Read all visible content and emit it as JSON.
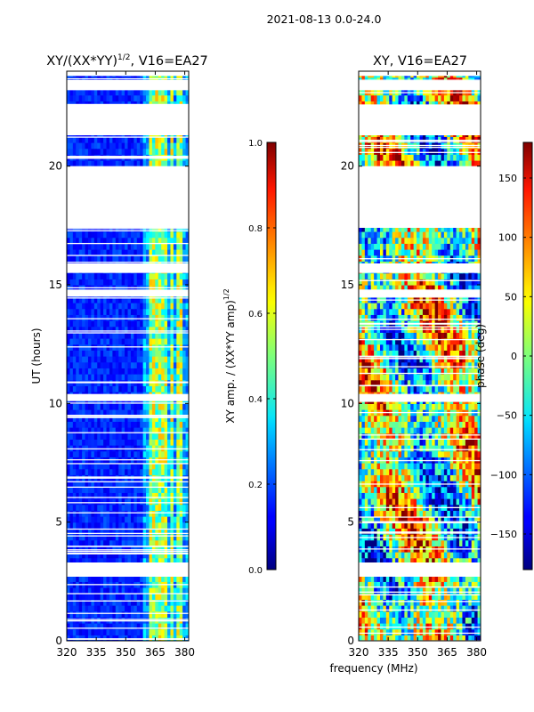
{
  "figure": {
    "suptitle": "2021-08-13 0.0-24.0",
    "xlabel": "frequency (MHz)"
  },
  "chart_data": [
    {
      "type": "heatmap",
      "title_main": "XY/(XX*YY)",
      "title_sup": "1/2",
      "title_tail": ", V16=EA27",
      "ylabel": "UT (hours)",
      "xlim": [
        320,
        382
      ],
      "ylim": [
        0,
        24
      ],
      "xticks": [
        320,
        335,
        350,
        365,
        380
      ],
      "yticks": [
        0,
        5,
        10,
        15,
        20
      ],
      "colorbar": {
        "label_main": "XY amp. / (XX*YY amp)",
        "label_sup": "1/2",
        "range": [
          0.0,
          1.0
        ],
        "ticks": [
          "0.0",
          "0.2",
          "0.4",
          "0.6",
          "0.8",
          "1.0"
        ],
        "colormap": "jet"
      },
      "flagged_ut_ranges": [
        [
          2.7,
          3.3
        ],
        [
          10.1,
          10.4
        ],
        [
          14.5,
          14.8
        ],
        [
          15.5,
          15.9
        ],
        [
          17.4,
          20.0
        ],
        [
          21.3,
          22.6
        ],
        [
          23.2,
          23.6
        ],
        [
          23.8,
          24.0
        ]
      ],
      "strong_bands_mhz": [
        [
          362,
          366
        ],
        [
          367,
          371
        ],
        [
          373,
          375
        ],
        [
          376,
          379
        ]
      ]
    },
    {
      "type": "heatmap",
      "title": "XY, V16=EA27",
      "ylabel": "",
      "xlim": [
        320,
        382
      ],
      "ylim": [
        0,
        24
      ],
      "xticks": [
        320,
        335,
        350,
        365,
        380
      ],
      "yticks": [
        0,
        5,
        10,
        15,
        20
      ],
      "colorbar": {
        "label": "phase (deg)",
        "range": [
          -180,
          180
        ],
        "ticks": [
          "−150",
          "−100",
          "−50",
          "0",
          "50",
          "100",
          "150"
        ],
        "colormap": "jet"
      },
      "flagged_ut_ranges": [
        [
          2.7,
          3.3
        ],
        [
          10.1,
          10.4
        ],
        [
          14.5,
          14.8
        ],
        [
          15.5,
          15.9
        ],
        [
          17.4,
          20.0
        ],
        [
          21.3,
          22.6
        ],
        [
          23.2,
          23.6
        ],
        [
          23.8,
          24.0
        ]
      ]
    }
  ]
}
